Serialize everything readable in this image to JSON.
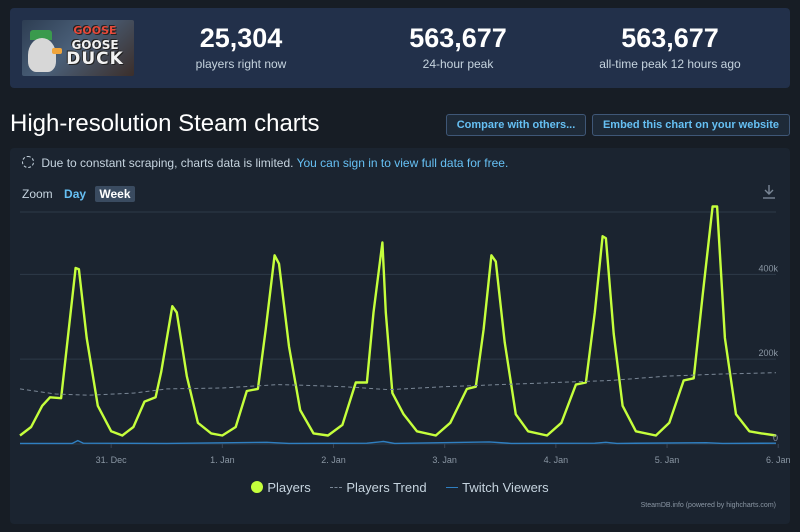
{
  "header": {
    "logo": {
      "line1": "GOOSE",
      "line2": "GOOSE",
      "line3": "DUCK"
    },
    "stats": [
      {
        "value": "25,304",
        "label": "players right now"
      },
      {
        "value": "563,677",
        "label": "24-hour peak"
      },
      {
        "value": "563,677",
        "label": "all-time peak 12 hours ago"
      }
    ]
  },
  "page": {
    "title": "High-resolution Steam charts",
    "compare_label": "Compare with others...",
    "embed_label": "Embed this chart on your website"
  },
  "notice": {
    "text": "Due to constant scraping, charts data is limited.",
    "link": "You can sign in to view full data for free."
  },
  "zoom": {
    "label": "Zoom",
    "options": [
      "Day",
      "Week"
    ],
    "selected": "Week"
  },
  "chart_data": {
    "type": "line",
    "x_ticks": [
      "31. Dec",
      "1. Jan",
      "2. Jan",
      "3. Jan",
      "4. Jan",
      "5. Jan",
      "6. Jan"
    ],
    "y_ticks": [
      "0",
      "200k",
      "400k"
    ],
    "ylim": [
      0,
      580000
    ],
    "y_tick_values": [
      0,
      200000,
      400000
    ],
    "x_range_days": [
      -0.82,
      5.98
    ],
    "grid": true,
    "legend_position": "bottom",
    "series": [
      {
        "name": "Players",
        "color": "#c5ff3c",
        "style": "solid",
        "points": [
          [
            -0.82,
            20000
          ],
          [
            -0.72,
            40000
          ],
          [
            -0.62,
            90000
          ],
          [
            -0.55,
            110000
          ],
          [
            -0.45,
            108000
          ],
          [
            -0.39,
            250000
          ],
          [
            -0.32,
            415000
          ],
          [
            -0.29,
            412000
          ],
          [
            -0.22,
            250000
          ],
          [
            -0.12,
            90000
          ],
          [
            0.0,
            30000
          ],
          [
            0.1,
            20000
          ],
          [
            0.2,
            40000
          ],
          [
            0.3,
            100000
          ],
          [
            0.4,
            110000
          ],
          [
            0.45,
            170000
          ],
          [
            0.55,
            325000
          ],
          [
            0.59,
            310000
          ],
          [
            0.68,
            160000
          ],
          [
            0.78,
            50000
          ],
          [
            0.9,
            25000
          ],
          [
            1.0,
            20000
          ],
          [
            1.12,
            40000
          ],
          [
            1.22,
            125000
          ],
          [
            1.32,
            130000
          ],
          [
            1.39,
            270000
          ],
          [
            1.47,
            445000
          ],
          [
            1.51,
            425000
          ],
          [
            1.6,
            230000
          ],
          [
            1.7,
            80000
          ],
          [
            1.82,
            25000
          ],
          [
            1.95,
            20000
          ],
          [
            2.08,
            45000
          ],
          [
            2.2,
            145000
          ],
          [
            2.3,
            145000
          ],
          [
            2.36,
            310000
          ],
          [
            2.44,
            475000
          ],
          [
            2.47,
            310000
          ],
          [
            2.53,
            120000
          ],
          [
            2.63,
            70000
          ],
          [
            2.75,
            30000
          ],
          [
            2.92,
            20000
          ],
          [
            3.05,
            50000
          ],
          [
            3.2,
            130000
          ],
          [
            3.28,
            135000
          ],
          [
            3.35,
            270000
          ],
          [
            3.42,
            445000
          ],
          [
            3.46,
            430000
          ],
          [
            3.54,
            240000
          ],
          [
            3.64,
            70000
          ],
          [
            3.75,
            30000
          ],
          [
            3.92,
            20000
          ],
          [
            4.05,
            50000
          ],
          [
            4.18,
            140000
          ],
          [
            4.27,
            145000
          ],
          [
            4.35,
            310000
          ],
          [
            4.42,
            490000
          ],
          [
            4.45,
            485000
          ],
          [
            4.52,
            260000
          ],
          [
            4.6,
            90000
          ],
          [
            4.72,
            30000
          ],
          [
            4.9,
            20000
          ],
          [
            5.02,
            50000
          ],
          [
            5.15,
            150000
          ],
          [
            5.24,
            155000
          ],
          [
            5.32,
            350000
          ],
          [
            5.41,
            560000
          ],
          [
            5.45,
            560000
          ],
          [
            5.52,
            250000
          ],
          [
            5.62,
            70000
          ],
          [
            5.74,
            30000
          ],
          [
            5.85,
            25000
          ],
          [
            5.98,
            20000
          ]
        ]
      },
      {
        "name": "Players Trend",
        "color": "#7a8796",
        "style": "dashed",
        "points": [
          [
            -0.82,
            130000
          ],
          [
            -0.5,
            118000
          ],
          [
            -0.2,
            115000
          ],
          [
            0.2,
            120000
          ],
          [
            0.5,
            130000
          ],
          [
            1.0,
            132000
          ],
          [
            1.5,
            140000
          ],
          [
            1.8,
            138000
          ],
          [
            2.1,
            135000
          ],
          [
            2.5,
            128000
          ],
          [
            3.0,
            135000
          ],
          [
            3.5,
            140000
          ],
          [
            4.0,
            145000
          ],
          [
            4.5,
            150000
          ],
          [
            5.0,
            160000
          ],
          [
            5.5,
            165000
          ],
          [
            5.98,
            168000
          ]
        ]
      },
      {
        "name": "Twitch Viewers",
        "color": "#2f7fc1",
        "style": "solid",
        "points": [
          [
            -0.82,
            1500
          ],
          [
            -0.35,
            1500
          ],
          [
            -0.3,
            8000
          ],
          [
            -0.25,
            2000
          ],
          [
            0.5,
            1500
          ],
          [
            1.4,
            4000
          ],
          [
            1.6,
            1500
          ],
          [
            2.3,
            2000
          ],
          [
            2.45,
            6000
          ],
          [
            2.55,
            1500
          ],
          [
            3.4,
            5000
          ],
          [
            3.6,
            1500
          ],
          [
            4.35,
            2000
          ],
          [
            4.45,
            4000
          ],
          [
            4.55,
            1500
          ],
          [
            5.35,
            3000
          ],
          [
            5.5,
            1500
          ],
          [
            5.98,
            2000
          ]
        ]
      }
    ]
  },
  "credits": "SteamDB.info (powered by highcharts.com)",
  "icons": {
    "download": "download-icon",
    "info": "info-icon"
  }
}
